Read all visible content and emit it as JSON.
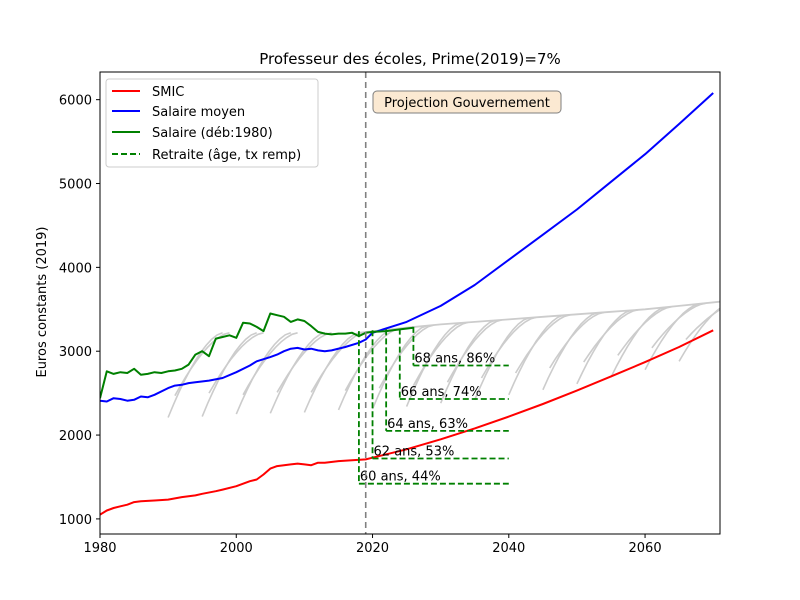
{
  "chart_data": {
    "type": "line",
    "title": "Professeur des écoles, Prime(2019)=7%",
    "xlabel": "",
    "ylabel": "Euros constants (2019)",
    "xlim": [
      1980,
      2071
    ],
    "ylim": [
      820,
      6330
    ],
    "x_ticks": [
      1980,
      2000,
      2020,
      2040,
      2060
    ],
    "y_ticks": [
      1000,
      2000,
      3000,
      4000,
      5000,
      6000
    ],
    "grid": false,
    "legend_position": "upper-left",
    "annotation": "Projection Gouvernement",
    "reference_line_x": 2019,
    "series": [
      {
        "name": "SMIC",
        "color": "#ff0000",
        "points": [
          [
            1980,
            1050
          ],
          [
            1981,
            1100
          ],
          [
            1982,
            1130
          ],
          [
            1983,
            1150
          ],
          [
            1984,
            1170
          ],
          [
            1985,
            1200
          ],
          [
            1986,
            1210
          ],
          [
            1988,
            1220
          ],
          [
            1990,
            1230
          ],
          [
            1992,
            1260
          ],
          [
            1994,
            1280
          ],
          [
            1995,
            1300
          ],
          [
            1997,
            1330
          ],
          [
            1998,
            1350
          ],
          [
            2000,
            1390
          ],
          [
            2001,
            1420
          ],
          [
            2002,
            1450
          ],
          [
            2003,
            1470
          ],
          [
            2004,
            1530
          ],
          [
            2005,
            1600
          ],
          [
            2006,
            1630
          ],
          [
            2007,
            1640
          ],
          [
            2008,
            1650
          ],
          [
            2009,
            1660
          ],
          [
            2010,
            1650
          ],
          [
            2011,
            1640
          ],
          [
            2012,
            1670
          ],
          [
            2013,
            1670
          ],
          [
            2015,
            1690
          ],
          [
            2017,
            1700
          ],
          [
            2019,
            1710
          ],
          [
            2020,
            1730
          ],
          [
            2025,
            1830
          ],
          [
            2030,
            1950
          ],
          [
            2035,
            2080
          ],
          [
            2040,
            2220
          ],
          [
            2045,
            2370
          ],
          [
            2050,
            2530
          ],
          [
            2055,
            2700
          ],
          [
            2060,
            2870
          ],
          [
            2065,
            3050
          ],
          [
            2070,
            3250
          ]
        ]
      },
      {
        "name": "Salaire moyen",
        "color": "#0000ff",
        "points": [
          [
            1980,
            2410
          ],
          [
            1981,
            2400
          ],
          [
            1982,
            2440
          ],
          [
            1983,
            2430
          ],
          [
            1984,
            2410
          ],
          [
            1985,
            2420
          ],
          [
            1986,
            2460
          ],
          [
            1987,
            2450
          ],
          [
            1988,
            2480
          ],
          [
            1990,
            2560
          ],
          [
            1991,
            2590
          ],
          [
            1992,
            2600
          ],
          [
            1993,
            2620
          ],
          [
            1994,
            2630
          ],
          [
            1996,
            2650
          ],
          [
            1998,
            2680
          ],
          [
            2000,
            2750
          ],
          [
            2002,
            2830
          ],
          [
            2003,
            2880
          ],
          [
            2005,
            2930
          ],
          [
            2006,
            2960
          ],
          [
            2007,
            3000
          ],
          [
            2008,
            3030
          ],
          [
            2009,
            3040
          ],
          [
            2010,
            3020
          ],
          [
            2011,
            3030
          ],
          [
            2012,
            3010
          ],
          [
            2013,
            3000
          ],
          [
            2014,
            3010
          ],
          [
            2016,
            3050
          ],
          [
            2018,
            3100
          ],
          [
            2019,
            3140
          ],
          [
            2020,
            3220
          ],
          [
            2025,
            3350
          ],
          [
            2030,
            3540
          ],
          [
            2035,
            3790
          ],
          [
            2040,
            4090
          ],
          [
            2045,
            4390
          ],
          [
            2050,
            4690
          ],
          [
            2055,
            5020
          ],
          [
            2060,
            5350
          ],
          [
            2065,
            5710
          ],
          [
            2070,
            6080
          ]
        ]
      },
      {
        "name": "Salaire (déb:1980)",
        "color": "#008000",
        "points": [
          [
            1980,
            2440
          ],
          [
            1981,
            2760
          ],
          [
            1982,
            2730
          ],
          [
            1983,
            2750
          ],
          [
            1984,
            2740
          ],
          [
            1985,
            2790
          ],
          [
            1986,
            2720
          ],
          [
            1987,
            2730
          ],
          [
            1988,
            2750
          ],
          [
            1989,
            2740
          ],
          [
            1990,
            2760
          ],
          [
            1991,
            2770
          ],
          [
            1992,
            2790
          ],
          [
            1993,
            2840
          ],
          [
            1994,
            2960
          ],
          [
            1995,
            3000
          ],
          [
            1996,
            2940
          ],
          [
            1997,
            3150
          ],
          [
            1998,
            3170
          ],
          [
            1999,
            3190
          ],
          [
            2000,
            3160
          ],
          [
            2001,
            3340
          ],
          [
            2002,
            3330
          ],
          [
            2003,
            3290
          ],
          [
            2004,
            3240
          ],
          [
            2005,
            3450
          ],
          [
            2006,
            3430
          ],
          [
            2007,
            3410
          ],
          [
            2008,
            3350
          ],
          [
            2009,
            3380
          ],
          [
            2010,
            3360
          ],
          [
            2011,
            3300
          ],
          [
            2012,
            3230
          ],
          [
            2013,
            3210
          ],
          [
            2014,
            3200
          ],
          [
            2015,
            3210
          ],
          [
            2016,
            3210
          ],
          [
            2017,
            3220
          ],
          [
            2018,
            3180
          ],
          [
            2019,
            3220
          ],
          [
            2020,
            3230
          ],
          [
            2022,
            3240
          ],
          [
            2024,
            3260
          ],
          [
            2026,
            3280
          ]
        ]
      }
    ],
    "retirement_label": "Retraite (âge, tx remp)",
    "retirement_color": "#008000",
    "retirements": [
      {
        "label": "60 ans, 44%",
        "x_start": 2018,
        "x_end": 2040,
        "y_top": 3240,
        "y": 1420
      },
      {
        "label": "62 ans, 53%",
        "x_start": 2020,
        "x_end": 2040,
        "y_top": 3250,
        "y": 1720
      },
      {
        "label": "64 ans, 63%",
        "x_start": 2022,
        "x_end": 2040,
        "y_top": 3260,
        "y": 2050
      },
      {
        "label": "66 ans, 74%",
        "x_start": 2024,
        "x_end": 2040,
        "y_top": 3270,
        "y": 2430
      },
      {
        "label": "68 ans, 86%",
        "x_start": 2026,
        "x_end": 2040,
        "y_top": 3290,
        "y": 2830
      }
    ],
    "gray_career_curves": {
      "color": "#cccccc",
      "starts": [
        {
          "x": 1990,
          "y": 2210
        },
        {
          "x": 1991,
          "y": 2470
        },
        {
          "x": 1995,
          "y": 2220
        },
        {
          "x": 1996,
          "y": 2500
        },
        {
          "x": 2000,
          "y": 2250
        },
        {
          "x": 2001,
          "y": 2480
        },
        {
          "x": 2005,
          "y": 2260
        },
        {
          "x": 2006,
          "y": 2510
        },
        {
          "x": 2010,
          "y": 2270
        },
        {
          "x": 2011,
          "y": 2510
        },
        {
          "x": 2015,
          "y": 2300
        },
        {
          "x": 2016,
          "y": 2530
        },
        {
          "x": 2020,
          "y": 2310
        },
        {
          "x": 2021,
          "y": 2560
        },
        {
          "x": 2025,
          "y": 2340
        },
        {
          "x": 2026,
          "y": 2590
        },
        {
          "x": 2030,
          "y": 2380
        },
        {
          "x": 2031,
          "y": 2630
        },
        {
          "x": 2035,
          "y": 2420
        },
        {
          "x": 2036,
          "y": 2680
        },
        {
          "x": 2040,
          "y": 2480
        },
        {
          "x": 2041,
          "y": 2740
        },
        {
          "x": 2045,
          "y": 2540
        },
        {
          "x": 2046,
          "y": 2800
        },
        {
          "x": 2050,
          "y": 2610
        },
        {
          "x": 2051,
          "y": 2870
        },
        {
          "x": 2055,
          "y": 2690
        },
        {
          "x": 2056,
          "y": 2950
        },
        {
          "x": 2060,
          "y": 2780
        },
        {
          "x": 2061,
          "y": 3040
        },
        {
          "x": 2065,
          "y": 2880
        },
        {
          "x": 2066,
          "y": 3140
        }
      ],
      "envelope": [
        [
          2018,
          3220
        ],
        [
          2025,
          3280
        ],
        [
          2030,
          3320
        ],
        [
          2035,
          3350
        ],
        [
          2040,
          3380
        ],
        [
          2045,
          3410
        ],
        [
          2050,
          3440
        ],
        [
          2055,
          3470
        ],
        [
          2060,
          3500
        ],
        [
          2065,
          3540
        ],
        [
          2071,
          3590
        ]
      ]
    }
  }
}
